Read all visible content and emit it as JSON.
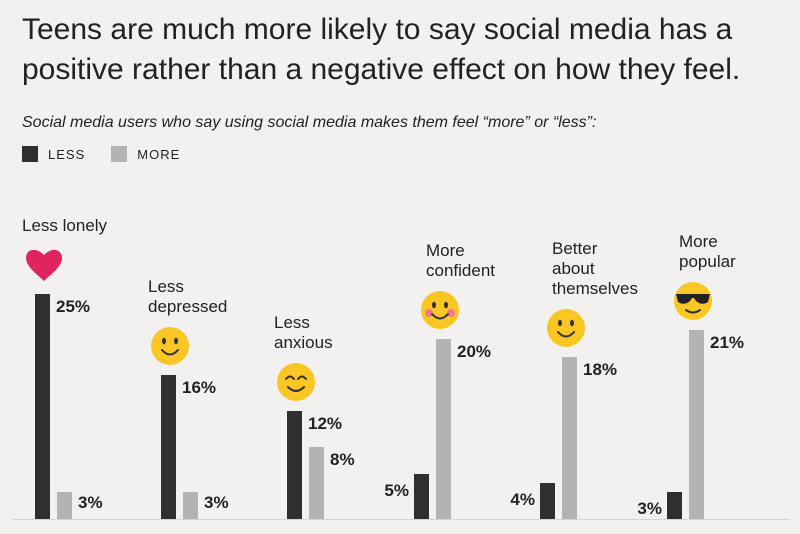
{
  "header": {
    "title_line1": "Teens are much more likely to say social media has a",
    "title_line2": "positive rather than a negative effect on how they feel.",
    "subtitle": "Social media users who say using social media makes them feel “more” or “less”:"
  },
  "legend": {
    "less_label": "LESS",
    "more_label": "MORE"
  },
  "colors": {
    "less": "#2f2f2f",
    "more": "#b3b3b3",
    "background": "#f2f1f0",
    "emoji": "#f9c623",
    "heart": "#e0245e"
  },
  "chart_data": {
    "type": "bar",
    "title": "Teens are much more likely to say social media has a positive rather than a negative effect on how they feel.",
    "subtitle": "Social media users who say using social media makes them feel “more” or “less”:",
    "categories": [
      [
        "Less lonely"
      ],
      [
        "Less",
        "depressed"
      ],
      [
        "Less",
        "anxious"
      ],
      [
        "More",
        "confident"
      ],
      [
        "Better",
        "about",
        "themselves"
      ],
      [
        "More",
        "popular"
      ]
    ],
    "icons": [
      "heart-icon",
      "smile-icon",
      "content-smile-icon",
      "blush-smile-icon",
      "smile-icon",
      "sunglasses-icon"
    ],
    "series": [
      {
        "name": "LESS",
        "values": [
          25,
          16,
          12,
          5,
          4,
          3
        ],
        "labels": [
          "25%",
          "16%",
          "12%",
          "5%",
          "4%",
          "3%"
        ]
      },
      {
        "name": "MORE",
        "values": [
          3,
          3,
          8,
          20,
          18,
          21
        ],
        "labels": [
          "3%",
          "3%",
          "8%",
          "20%",
          "18%",
          "21%"
        ]
      }
    ],
    "ylim": [
      0,
      25
    ],
    "xlabel": "",
    "ylabel": ""
  }
}
